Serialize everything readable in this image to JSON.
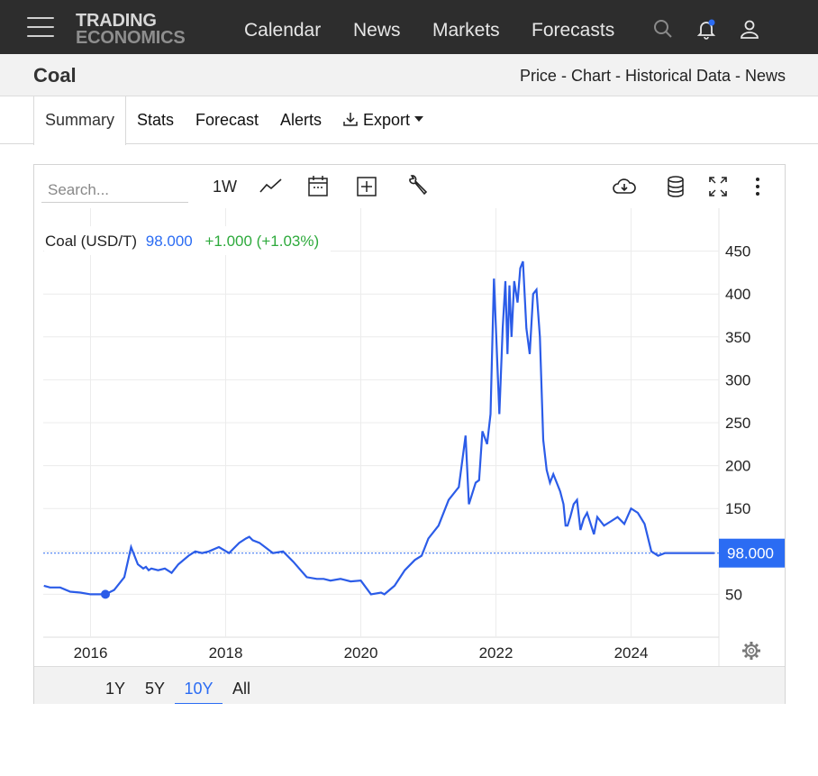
{
  "topnav": {
    "logo_line1": "TRADING",
    "logo_line2": "ECONOMICS",
    "items": [
      {
        "label": "Calendar"
      },
      {
        "label": "News"
      },
      {
        "label": "Markets"
      },
      {
        "label": "Forecasts"
      }
    ],
    "icons": [
      "menu-icon",
      "search-icon",
      "bell-icon",
      "user-icon"
    ],
    "notification_dot_color": "#2b6cf3"
  },
  "page": {
    "title": "Coal",
    "breadcrumb": "Price - Chart - Historical Data - News"
  },
  "tabs": [
    {
      "label": "Summary",
      "active": true
    },
    {
      "label": "Stats"
    },
    {
      "label": "Forecast"
    },
    {
      "label": "Alerts"
    },
    {
      "label": "Export"
    }
  ],
  "toolbar": {
    "search_placeholder": "Search...",
    "interval_label": "1W",
    "icons": [
      "line-chart-icon",
      "calendar-icon",
      "add-series-icon",
      "wrench-icon",
      "download-cloud-icon",
      "database-icon",
      "fullscreen-icon",
      "more-icon"
    ]
  },
  "legend": {
    "name": "Coal (USD/T)",
    "value": "98.000",
    "change": "+1.000 (+1.03%)"
  },
  "ranges": [
    {
      "label": "1Y"
    },
    {
      "label": "5Y"
    },
    {
      "label": "10Y",
      "active": true
    },
    {
      "label": "All"
    }
  ],
  "colors": {
    "line": "#2b5ce8",
    "accent": "#2b6cf3",
    "positive": "#2eaa3c",
    "price_tag_bg": "#2b6cf3"
  },
  "chart_data": {
    "type": "line",
    "ylim": [
      0,
      500
    ],
    "xlim": [
      2015.3,
      2025.3
    ],
    "y_ticks": [
      50,
      100,
      150,
      200,
      250,
      300,
      350,
      400,
      450
    ],
    "y_tick_labels": [
      "50",
      "",
      "150",
      "200",
      "250",
      "300",
      "350",
      "400",
      "450"
    ],
    "x_ticks": [
      2016,
      2018,
      2020,
      2022,
      2024
    ],
    "x_tick_labels": [
      "2016",
      "2018",
      "2020",
      "2022",
      "2024"
    ],
    "last_price_label": "98.000",
    "last_price": 98,
    "grid": true,
    "series": [
      {
        "x": [
          2015.31,
          2015.4,
          2015.55,
          2015.7,
          2015.85,
          2016.0,
          2016.1,
          2016.22,
          2016.35,
          2016.5,
          2016.6,
          2016.7,
          2016.78,
          2016.82,
          2016.86,
          2016.9,
          2017.0,
          2017.1,
          2017.2,
          2017.3,
          2017.45,
          2017.55,
          2017.65,
          2017.75,
          2017.9,
          2018.05,
          2018.1,
          2018.2,
          2018.3,
          2018.35,
          2018.4,
          2018.5,
          2018.6,
          2018.7,
          2018.85,
          2019.0,
          2019.2,
          2019.35,
          2019.45,
          2019.55,
          2019.7,
          2019.85,
          2020.0,
          2020.15,
          2020.3,
          2020.35,
          2020.5,
          2020.65,
          2020.8,
          2020.9,
          2021.0,
          2021.15,
          2021.3,
          2021.45,
          2021.55,
          2021.6,
          2021.7,
          2021.75,
          2021.8,
          2021.87,
          2021.92,
          2021.97,
          2022.05,
          2022.1,
          2022.14,
          2022.17,
          2022.2,
          2022.23,
          2022.27,
          2022.32,
          2022.36,
          2022.4,
          2022.45,
          2022.5,
          2022.55,
          2022.6,
          2022.65,
          2022.7,
          2022.75,
          2022.8,
          2022.85,
          2022.9,
          2022.95,
          2023.0,
          2023.03,
          2023.06,
          2023.1,
          2023.15,
          2023.2,
          2023.25,
          2023.3,
          2023.35,
          2023.45,
          2023.5,
          2023.6,
          2023.7,
          2023.8,
          2023.9,
          2024.0,
          2024.1,
          2024.2,
          2024.3,
          2024.4,
          2024.5,
          2024.6,
          2024.75,
          2024.85,
          2024.95,
          2025.05,
          2025.15,
          2025.23
        ],
        "y": [
          60,
          58,
          58,
          53,
          52,
          50,
          50,
          50,
          55,
          70,
          105,
          85,
          80,
          82,
          78,
          80,
          78,
          80,
          75,
          85,
          95,
          100,
          98,
          100,
          105,
          98,
          102,
          110,
          115,
          117,
          113,
          110,
          104,
          98,
          100,
          88,
          70,
          68,
          68,
          66,
          68,
          65,
          66,
          50,
          52,
          50,
          60,
          78,
          90,
          95,
          115,
          130,
          160,
          175,
          235,
          155,
          180,
          183,
          240,
          225,
          260,
          418,
          260,
          360,
          415,
          330,
          410,
          350,
          415,
          390,
          430,
          438,
          360,
          330,
          400,
          405,
          350,
          230,
          195,
          180,
          190,
          180,
          170,
          155,
          130,
          130,
          140,
          155,
          160,
          125,
          138,
          145,
          120,
          140,
          130,
          135,
          140,
          132,
          150,
          145,
          132,
          100,
          95,
          98,
          98,
          98,
          98,
          98,
          98,
          98,
          98
        ]
      }
    ]
  }
}
